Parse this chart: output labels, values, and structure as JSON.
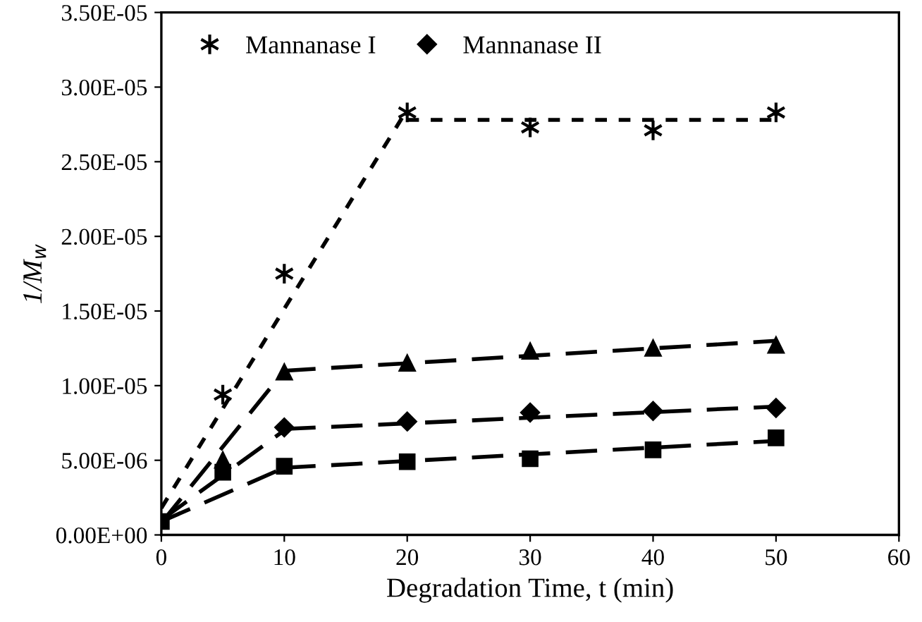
{
  "chart_data": {
    "type": "scatter",
    "xlabel": "Degradation Time, t (min)",
    "ylabel": "1/M$_{w}$",
    "xlim": [
      0,
      60
    ],
    "xticks": [
      0,
      10,
      20,
      30,
      40,
      50,
      60
    ],
    "ylim": [
      0,
      3.5e-05
    ],
    "yticks": [
      {
        "value": 0,
        "label": "0.00E+00"
      },
      {
        "value": 5e-06,
        "label": "5.00E-06"
      },
      {
        "value": 1e-05,
        "label": "1.00E-05"
      },
      {
        "value": 1.5e-05,
        "label": "1.50E-05"
      },
      {
        "value": 2e-05,
        "label": "2.00E-05"
      },
      {
        "value": 2.5e-05,
        "label": "2.50E-05"
      },
      {
        "value": 3e-05,
        "label": "3.00E-05"
      },
      {
        "value": 3.5e-05,
        "label": "3.50E-05"
      }
    ],
    "grid": false,
    "legend": "top left",
    "x": [
      0,
      5,
      10,
      20,
      30,
      40,
      50
    ],
    "series": [
      {
        "name": "Mannanase I",
        "color": "#000000",
        "marker": "cross",
        "values": [
          null,
          9.4e-06,
          1.75e-05,
          2.83e-05,
          2.73e-05,
          2.71e-05,
          2.83e-05
        ]
      },
      {
        "name": "Mannanase II",
        "color": "#000000",
        "marker": "diamond",
        "values": [
          null,
          null,
          7.2e-06,
          7.6e-06,
          8.2e-06,
          8.3e-06,
          8.5e-06
        ]
      },
      {
        "color": "#000000",
        "marker": "triangle",
        "values": [
          null,
          5e-06,
          1.09e-05,
          1.15e-05,
          1.23e-05,
          1.25e-05,
          1.27e-05
        ]
      },
      {
        "color": "#000000",
        "marker": "square",
        "values": [
          9e-07,
          4.2e-06,
          4.6e-06,
          4.9e-06,
          5.1e-06,
          5.7e-06,
          6.5e-06
        ]
      },
      {
        "type": "line",
        "color": "#000000",
        "line_style": "dotted",
        "x": [
          0,
          20
        ],
        "values": [
          1.8e-06,
          2.85e-05
        ]
      },
      {
        "type": "line",
        "color": "#000000",
        "line_style": "dotted",
        "x": [
          20,
          50
        ],
        "values": [
          2.78e-05,
          2.78e-05
        ]
      },
      {
        "type": "line",
        "color": "#000000",
        "line_style": "dashed",
        "x": [
          0,
          10
        ],
        "values": [
          8e-07,
          1.1e-05
        ]
      },
      {
        "type": "line",
        "color": "#000000",
        "line_style": "dashed",
        "x": [
          10,
          50
        ],
        "values": [
          1.1e-05,
          1.3e-05
        ]
      },
      {
        "type": "line",
        "color": "#000000",
        "line_style": "dashed",
        "x": [
          0,
          10
        ],
        "values": [
          1e-06,
          7e-06
        ]
      },
      {
        "type": "line",
        "color": "#000000",
        "line_style": "dashed",
        "x": [
          10,
          50
        ],
        "values": [
          7.1e-06,
          8.6e-06
        ]
      },
      {
        "type": "line",
        "color": "#000000",
        "line_style": "dashed",
        "x": [
          0,
          10
        ],
        "values": [
          9e-07,
          4.5e-06
        ]
      },
      {
        "type": "line",
        "color": "#000000",
        "line_style": "dashed",
        "x": [
          10,
          50
        ],
        "values": [
          4.5e-06,
          6.3e-06
        ]
      }
    ]
  }
}
